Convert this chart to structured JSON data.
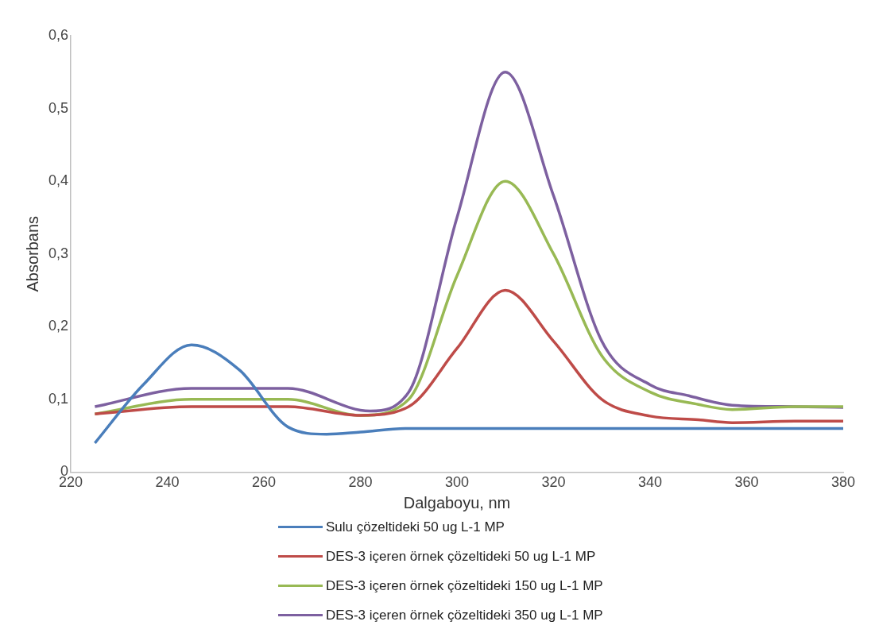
{
  "chart_data": {
    "type": "line",
    "xlabel": "Dalgaboyu, nm",
    "ylabel": "Absorbans",
    "xlim": [
      220,
      380
    ],
    "xticks": [
      220,
      240,
      260,
      280,
      300,
      320,
      340,
      360,
      380
    ],
    "ylim": [
      0,
      0.6
    ],
    "yticks": [
      0,
      {
        "value": 0.1,
        "label": "0,1"
      },
      {
        "value": 0.2,
        "label": "0,2"
      },
      {
        "value": 0.3,
        "label": "0,3"
      },
      {
        "value": 0.4,
        "label": "0,4"
      },
      {
        "value": 0.5,
        "label": "0,5"
      },
      {
        "value": 0.6,
        "label": "0,6"
      }
    ],
    "grid": false,
    "legend": "bottom",
    "marker": "none",
    "line_style": "solid",
    "series": [
      {
        "name": "Sulu çözeltideki 50 ug L-1 MP",
        "color": "#4a7ebb",
        "x": [
          225,
          235,
          245,
          255,
          265,
          273,
          280,
          290,
          300,
          310,
          320,
          340,
          360,
          380
        ],
        "values": [
          0.04,
          0.12,
          0.175,
          0.14,
          0.062,
          0.052,
          0.055,
          0.06,
          0.06,
          0.06,
          0.06,
          0.06,
          0.06,
          0.06
        ]
      },
      {
        "name": "DES-3 içeren örnek çözeltideki 50 ug L-1 MP",
        "color": "#be4b48",
        "x": [
          225,
          245,
          265,
          280,
          290,
          300,
          310,
          320,
          330,
          340,
          350,
          357,
          370,
          380
        ],
        "values": [
          0.08,
          0.09,
          0.09,
          0.078,
          0.09,
          0.17,
          0.25,
          0.18,
          0.1,
          0.077,
          0.072,
          0.068,
          0.07,
          0.07
        ]
      },
      {
        "name": "DES-3 içeren örnek çözeltideki 150 ug L-1 MP",
        "color": "#98b954",
        "x": [
          225,
          245,
          265,
          280,
          290,
          300,
          310,
          320,
          330,
          340,
          350,
          357,
          370,
          380
        ],
        "values": [
          0.08,
          0.1,
          0.1,
          0.078,
          0.1,
          0.27,
          0.4,
          0.3,
          0.16,
          0.11,
          0.093,
          0.086,
          0.09,
          0.09
        ]
      },
      {
        "name": "DES-3 içeren örnek çözeltideki 350 ug L-1 MP",
        "color": "#7d60a0",
        "x": [
          225,
          245,
          265,
          282,
          290,
          300,
          310,
          320,
          330,
          340,
          348,
          357,
          370,
          380
        ],
        "values": [
          0.09,
          0.115,
          0.115,
          0.084,
          0.11,
          0.35,
          0.55,
          0.38,
          0.18,
          0.12,
          0.105,
          0.092,
          0.09,
          0.089
        ]
      }
    ]
  }
}
